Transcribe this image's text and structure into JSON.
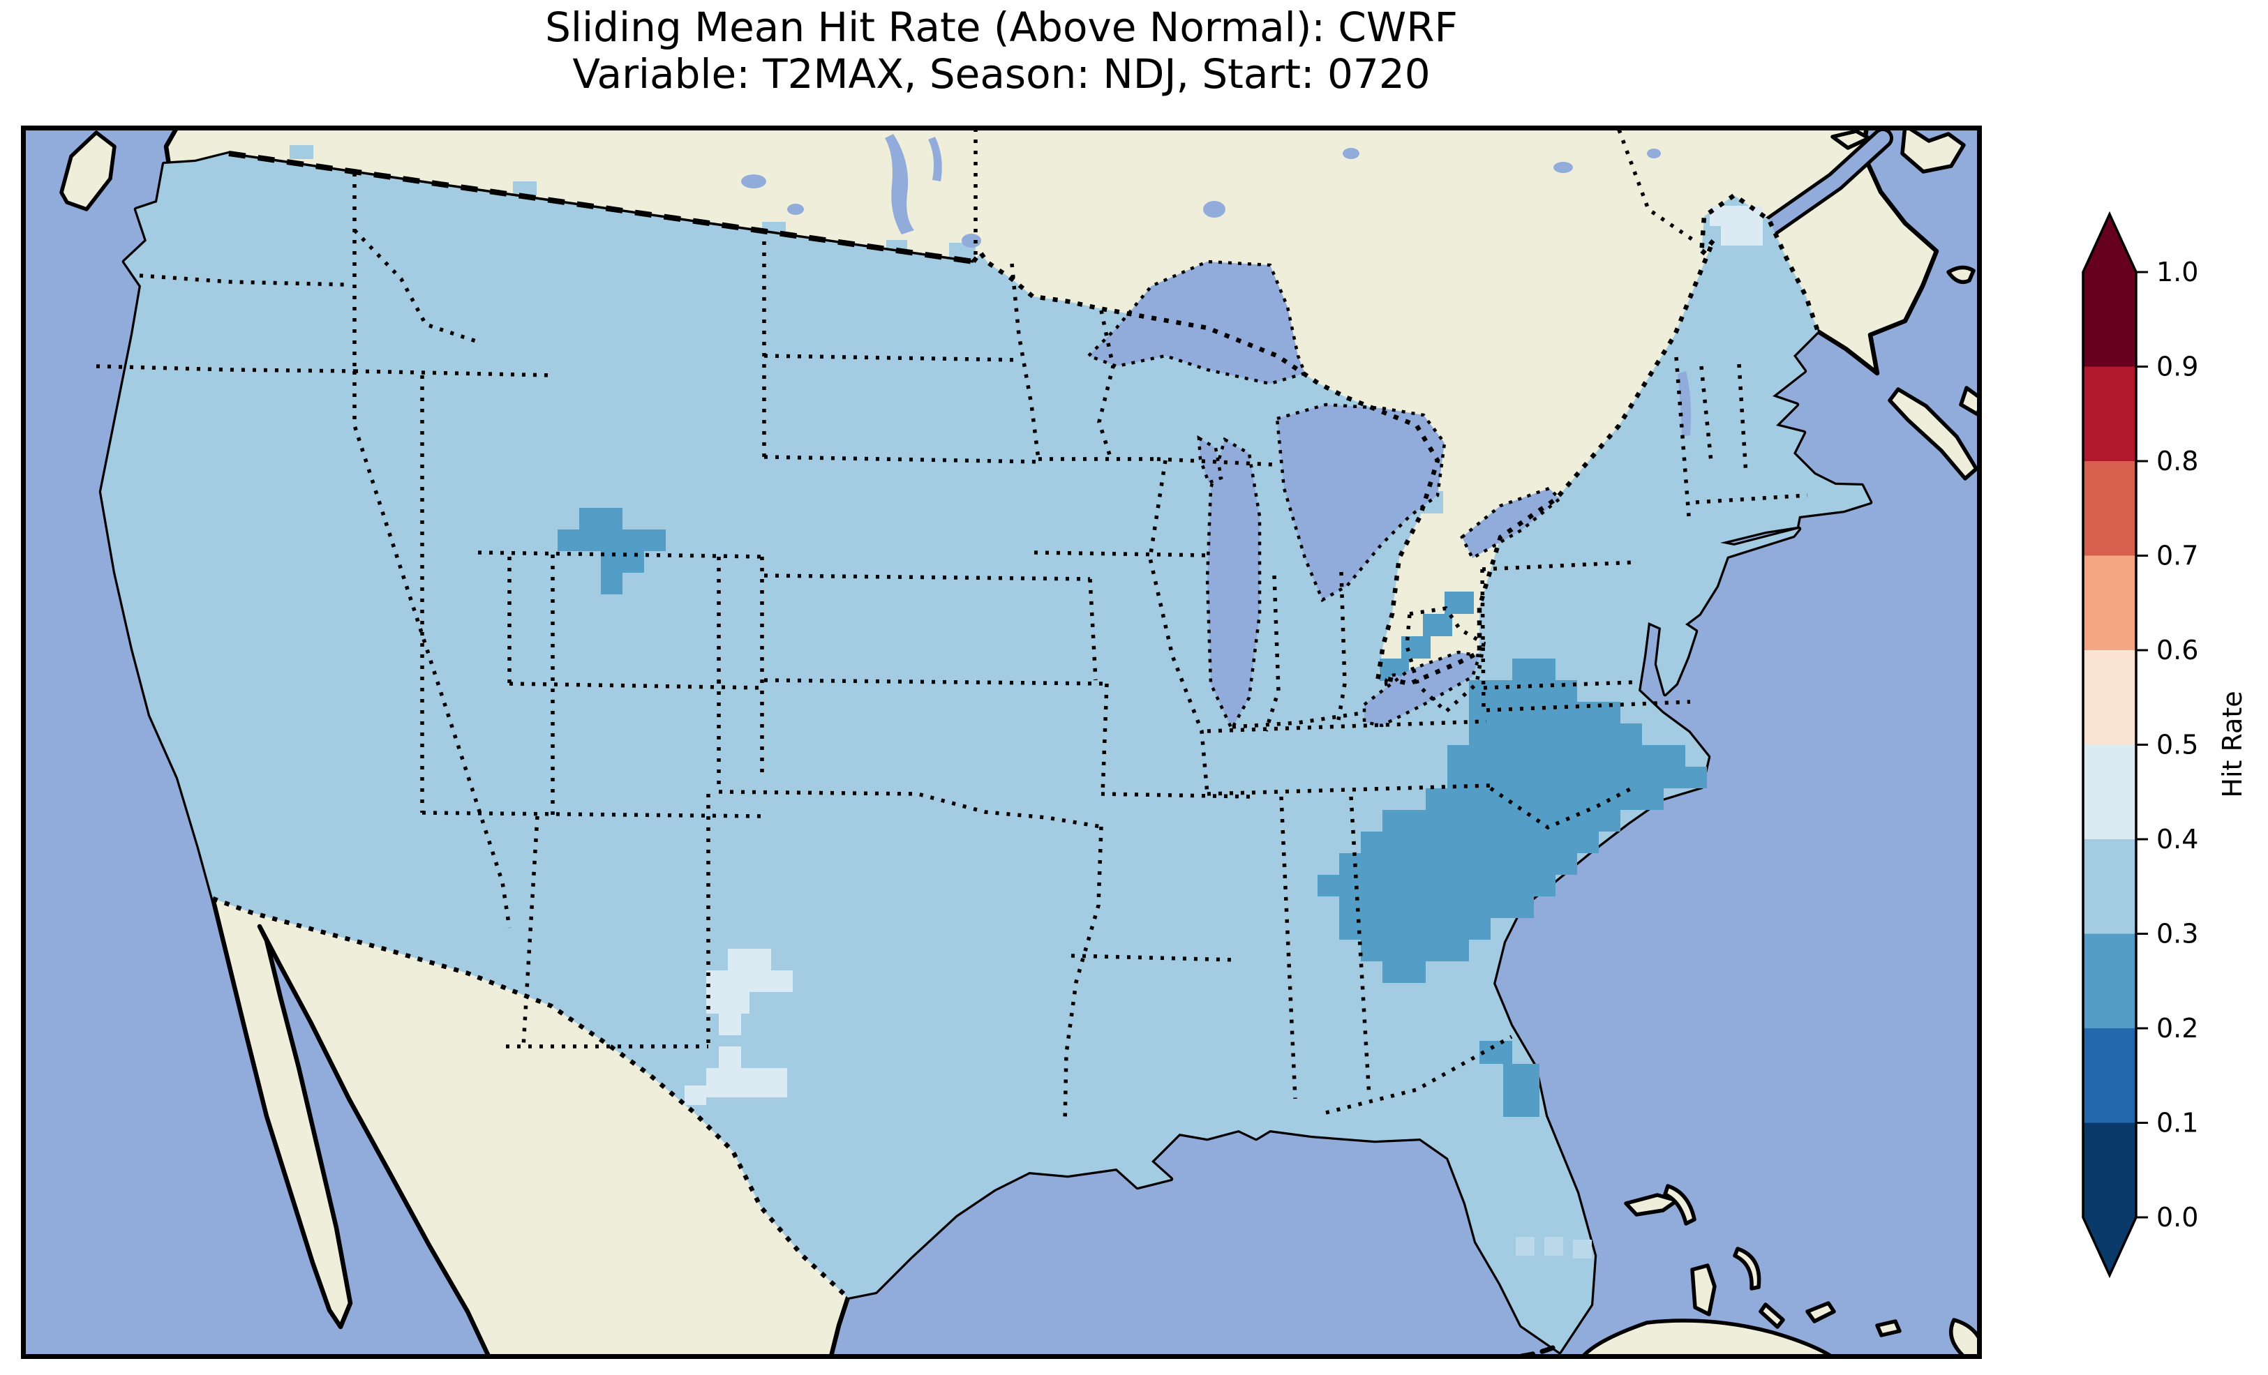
{
  "title": {
    "line1": "Sliding Mean Hit Rate (Above Normal): CWRF",
    "line2": "Variable: T2MAX, Season: NDJ, Start: 0720"
  },
  "colorbar": {
    "label": "Hit Rate",
    "ticks": [
      "1.0",
      "0.9",
      "0.8",
      "0.7",
      "0.6",
      "0.5",
      "0.4",
      "0.3",
      "0.2",
      "0.1",
      "0.0"
    ],
    "tick_values": [
      1.0,
      0.9,
      0.8,
      0.7,
      0.6,
      0.5,
      0.4,
      0.3,
      0.2,
      0.1,
      0.0
    ],
    "bin_colors_top_to_bottom": [
      "#67001f",
      "#b2182b",
      "#d6604d",
      "#f4a582",
      "#fbe3d4",
      "#dcebf3",
      "#a3cce3",
      "#539dc7",
      "#2468ac",
      "#0a3a69"
    ],
    "over_color": "#67001f",
    "under_color": "#0a3a69",
    "extend": "both"
  },
  "colors": {
    "ocean": "#91abdb",
    "land": "#efeeda",
    "coastline": "#000000",
    "us_fill": "#a3cce3",
    "cell_dark": "#539dc7",
    "cell_light": "#dcebf3",
    "cell_faint": "#bcd9ec",
    "text": "#000000"
  },
  "chart_data": {
    "type": "heatmap",
    "title": "Sliding Mean Hit Rate (Above Normal): CWRF",
    "subtitle": "Variable: T2MAX, Season: NDJ, Start: 0720",
    "model": "CWRF",
    "variable": "T2MAX",
    "season": "NDJ",
    "start": "0720",
    "map_extent": "Contiguous United States with surrounding Canada, Mexico, Caribbean",
    "colorbar": {
      "label": "Hit Rate",
      "range": [
        0.0,
        1.0
      ],
      "bin_width": 0.1,
      "extend": "both",
      "colormap": "RdBu_r (discrete, 10 bins)"
    },
    "regions": [
      {
        "region": "Most of contiguous United States",
        "hit_rate_bin": "0.3-0.4"
      },
      {
        "region": "Central Georgia / South Carolina / coastal North Carolina",
        "hit_rate_bin": "0.2-0.3"
      },
      {
        "region": "Central Alabama lobe of southeast patch",
        "hit_rate_bin": "0.2-0.3"
      },
      {
        "region": "North-central Wyoming cluster",
        "hit_rate_bin": "0.2-0.3"
      },
      {
        "region": "Eastern Ohio staircase strip",
        "hit_rate_bin": "0.2-0.3"
      },
      {
        "region": "East-central Florida coastal cell",
        "hit_rate_bin": "0.2-0.3"
      },
      {
        "region": "West Texas cluster",
        "hit_rate_bin": "0.4-0.5"
      },
      {
        "region": "Northern Maine",
        "hit_rate_bin": "0.4-0.5"
      }
    ],
    "legend_position": "right",
    "grid": false
  }
}
